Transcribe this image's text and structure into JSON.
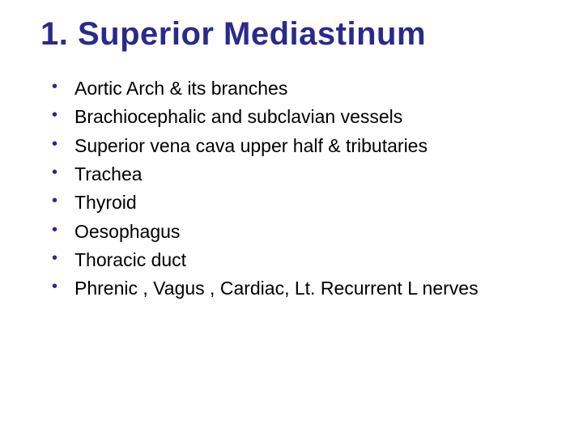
{
  "title": "1. Superior  Mediastinum",
  "title_color": "#2a2a8c",
  "title_fontsize": 40,
  "bullet_color": "#2a2a8c",
  "text_color": "#000000",
  "item_fontsize": 23,
  "background_color": "#ffffff",
  "items": [
    "Aortic Arch & its branches",
    "Brachiocephalic and subclavian vessels",
    "Superior vena cava upper half & tributaries",
    "Trachea",
    "Thyroid",
    "Oesophagus",
    "Thoracic duct",
    "Phrenic , Vagus , Cardiac, Lt. Recurrent L nerves"
  ]
}
